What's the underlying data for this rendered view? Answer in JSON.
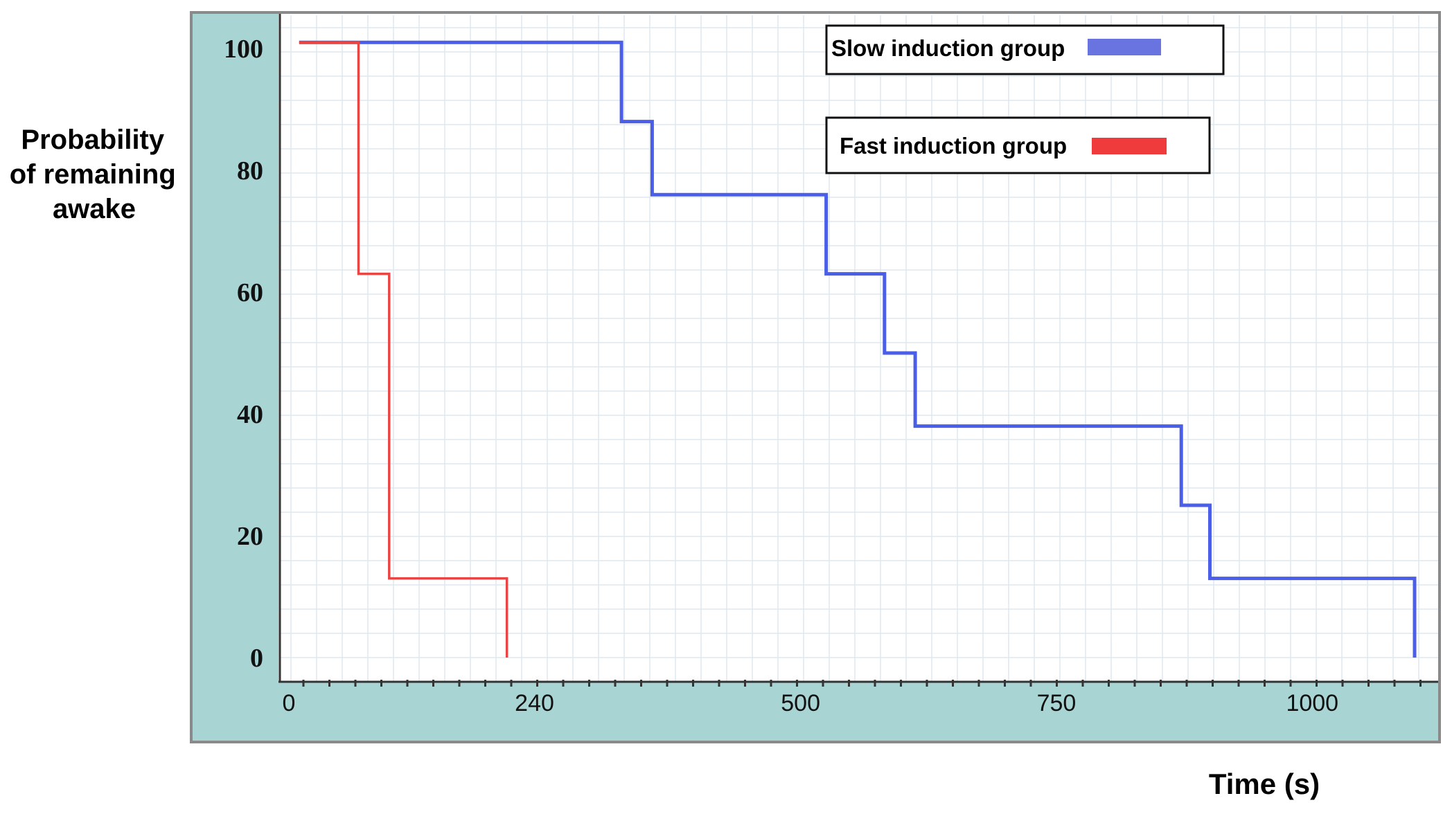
{
  "chart_data": {
    "type": "line",
    "step": true,
    "ylabel_lines": [
      "Probability",
      "of remaining",
      "awake"
    ],
    "xlabel": "Time (s)",
    "xticks": [
      0,
      240,
      500,
      750,
      1000
    ],
    "xtick_labels": [
      "0",
      "240",
      "500",
      "750",
      "1000"
    ],
    "yticks": [
      0,
      20,
      40,
      60,
      80,
      100
    ],
    "ytick_labels": [
      "0",
      "20",
      "40",
      "60",
      "80",
      "100"
    ],
    "xlim": [
      0,
      1110
    ],
    "ylim": [
      -2,
      104
    ],
    "grid": true,
    "legend_placement": "top-right",
    "series": [
      {
        "name": "Slow induction group",
        "color": "#4a5ee8",
        "legend_color": "#6a74e0",
        "x": [
          10,
          325,
          325,
          355,
          355,
          525,
          525,
          582,
          582,
          612,
          612,
          872,
          872,
          900,
          900,
          1100,
          1100
        ],
        "y": [
          101,
          101,
          88,
          88,
          76,
          76,
          63,
          63,
          50,
          50,
          38,
          38,
          25,
          25,
          13,
          13,
          0
        ]
      },
      {
        "name": "Fast induction group",
        "color": "#e84545",
        "legend_color": "#ef3b3b",
        "x": [
          10,
          68,
          68,
          98,
          98,
          213,
          213
        ],
        "y": [
          101,
          101,
          63,
          63,
          13,
          13,
          0
        ]
      }
    ]
  }
}
